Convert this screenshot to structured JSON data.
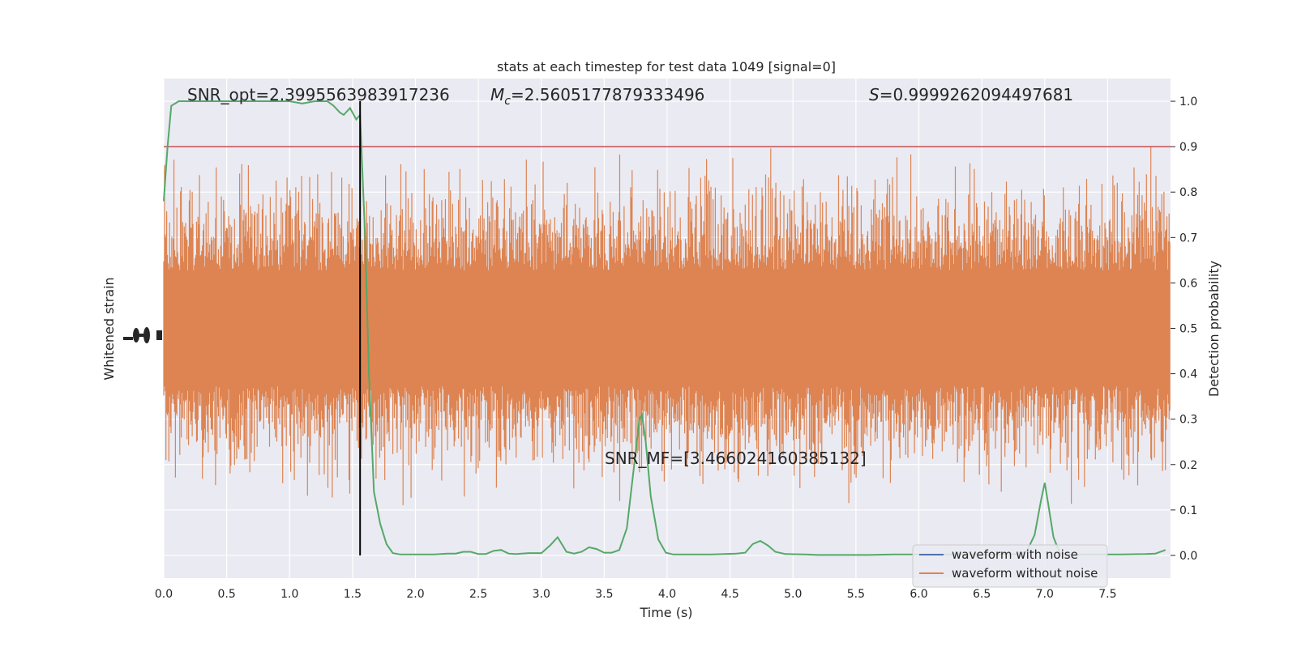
{
  "chart_data": {
    "type": "line",
    "title": "stats at each timestep for test data 1049 [signal=0]",
    "xlabel": "Time (s)",
    "ylabel_left": "Whitened strain",
    "ylabel_right": "Detection probability",
    "xlim": [
      0.0,
      8.0
    ],
    "ylim_right": [
      -0.05,
      1.05
    ],
    "x_ticks": [
      "0.0",
      "0.5",
      "1.0",
      "1.5",
      "2.0",
      "2.5",
      "3.0",
      "3.5",
      "4.0",
      "4.5",
      "5.0",
      "5.5",
      "6.0",
      "6.5",
      "7.0",
      "7.5"
    ],
    "x_tick_values": [
      0.0,
      0.5,
      1.0,
      1.5,
      2.0,
      2.5,
      3.0,
      3.5,
      4.0,
      4.5,
      5.0,
      5.5,
      6.0,
      6.5,
      7.0,
      7.5
    ],
    "y_right_ticks": [
      "0.0",
      "0.1",
      "0.2",
      "0.3",
      "0.4",
      "0.5",
      "0.6",
      "0.7",
      "0.8",
      "0.9",
      "1.0"
    ],
    "y_right_tick_values": [
      0.0,
      0.1,
      0.2,
      0.3,
      0.4,
      0.5,
      0.6,
      0.7,
      0.8,
      0.9,
      1.0
    ],
    "grid": true,
    "legend_position": "lower-right",
    "legend": [
      {
        "label": "waveform with noise",
        "color": "#4c72b0"
      },
      {
        "label": "waveform without noise",
        "color": "#dd8452"
      }
    ],
    "annotations": {
      "snr_opt": "SNR_opt=2.3995563983917236",
      "mc_symbol": "M",
      "mc_sub": "c",
      "mc_value": "=2.5605177879333496",
      "s_symbol": "S",
      "s_value": "=0.9999262094497681",
      "snr_mf": "SNR_MF=[3.466024160385132]"
    },
    "threshold": {
      "y": 0.9,
      "color": "#c44e52"
    },
    "marker_line": {
      "x": 1.56,
      "color": "#000000"
    },
    "colors": {
      "background": "#eaeaf2",
      "grid": "#ffffff",
      "waveform_with_noise": "#4c72b0",
      "waveform_without_noise": "#dd8452",
      "detection_probability": "#55a868"
    },
    "series": [
      {
        "role": "detection-probability",
        "color": "#55a868",
        "points": [
          [
            0.0,
            0.78
          ],
          [
            0.03,
            0.9
          ],
          [
            0.06,
            0.99
          ],
          [
            0.12,
            1.0
          ],
          [
            0.2,
            1.0
          ],
          [
            0.3,
            1.0
          ],
          [
            0.4,
            1.0
          ],
          [
            0.5,
            1.0
          ],
          [
            0.6,
            1.0
          ],
          [
            0.7,
            1.0
          ],
          [
            0.8,
            1.0
          ],
          [
            0.9,
            1.0
          ],
          [
            1.0,
            1.0
          ],
          [
            1.1,
            0.995
          ],
          [
            1.2,
            1.0
          ],
          [
            1.3,
            1.0
          ],
          [
            1.35,
            0.99
          ],
          [
            1.4,
            0.975
          ],
          [
            1.43,
            0.97
          ],
          [
            1.48,
            0.985
          ],
          [
            1.53,
            0.96
          ],
          [
            1.56,
            0.97
          ],
          [
            1.6,
            0.7
          ],
          [
            1.63,
            0.4
          ],
          [
            1.67,
            0.14
          ],
          [
            1.72,
            0.07
          ],
          [
            1.77,
            0.025
          ],
          [
            1.82,
            0.005
          ],
          [
            1.88,
            0.002
          ],
          [
            2.0,
            0.002
          ],
          [
            2.15,
            0.002
          ],
          [
            2.25,
            0.004
          ],
          [
            2.32,
            0.004
          ],
          [
            2.38,
            0.008
          ],
          [
            2.44,
            0.008
          ],
          [
            2.5,
            0.003
          ],
          [
            2.56,
            0.003
          ],
          [
            2.62,
            0.01
          ],
          [
            2.68,
            0.012
          ],
          [
            2.74,
            0.004
          ],
          [
            2.8,
            0.003
          ],
          [
            2.9,
            0.005
          ],
          [
            3.0,
            0.005
          ],
          [
            3.07,
            0.022
          ],
          [
            3.13,
            0.04
          ],
          [
            3.2,
            0.008
          ],
          [
            3.26,
            0.004
          ],
          [
            3.32,
            0.008
          ],
          [
            3.38,
            0.018
          ],
          [
            3.44,
            0.014
          ],
          [
            3.5,
            0.006
          ],
          [
            3.56,
            0.006
          ],
          [
            3.62,
            0.012
          ],
          [
            3.68,
            0.06
          ],
          [
            3.73,
            0.18
          ],
          [
            3.78,
            0.3
          ],
          [
            3.8,
            0.31
          ],
          [
            3.83,
            0.25
          ],
          [
            3.87,
            0.13
          ],
          [
            3.93,
            0.035
          ],
          [
            3.99,
            0.006
          ],
          [
            4.05,
            0.002
          ],
          [
            4.2,
            0.002
          ],
          [
            4.35,
            0.002
          ],
          [
            4.45,
            0.003
          ],
          [
            4.55,
            0.004
          ],
          [
            4.62,
            0.006
          ],
          [
            4.68,
            0.025
          ],
          [
            4.74,
            0.032
          ],
          [
            4.8,
            0.022
          ],
          [
            4.86,
            0.008
          ],
          [
            4.94,
            0.003
          ],
          [
            5.1,
            0.002
          ],
          [
            5.2,
            0.001
          ],
          [
            5.4,
            0.001
          ],
          [
            5.6,
            0.001
          ],
          [
            5.8,
            0.002
          ],
          [
            6.0,
            0.002
          ],
          [
            6.2,
            0.002
          ],
          [
            6.4,
            0.002
          ],
          [
            6.6,
            0.002
          ],
          [
            6.8,
            0.003
          ],
          [
            6.86,
            0.01
          ],
          [
            6.92,
            0.045
          ],
          [
            6.97,
            0.12
          ],
          [
            7.0,
            0.16
          ],
          [
            7.03,
            0.11
          ],
          [
            7.07,
            0.04
          ],
          [
            7.12,
            0.005
          ],
          [
            7.2,
            0.002
          ],
          [
            7.4,
            0.002
          ],
          [
            7.6,
            0.002
          ],
          [
            7.8,
            0.003
          ],
          [
            7.88,
            0.004
          ],
          [
            7.96,
            0.012
          ]
        ]
      }
    ]
  }
}
